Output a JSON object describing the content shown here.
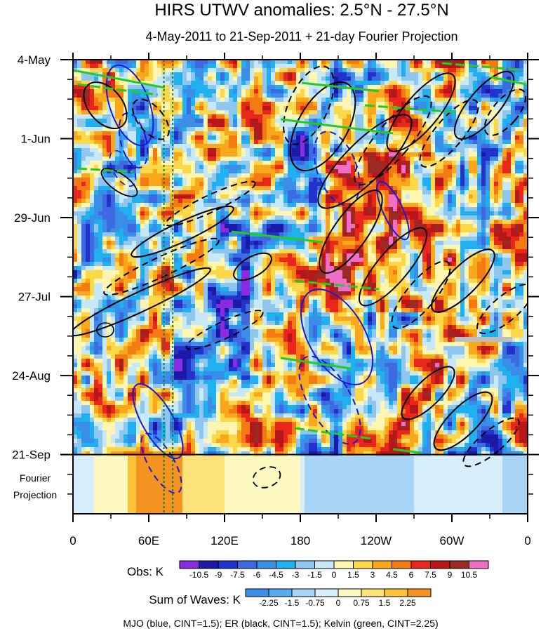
{
  "chart_data": {
    "type": "heatmap",
    "title": "HIRS UTWV anomalies: 2.5°N - 27.5°N",
    "subtitle": "4-May-2011 to 21-Sep-2011 + 21-day Fourier Projection",
    "x_ticks": [
      "0",
      "60E",
      "120E",
      "180",
      "120W",
      "60W",
      "0"
    ],
    "x_tick_values": [
      0,
      60,
      120,
      180,
      240,
      300,
      360
    ],
    "xlim": [
      0,
      360
    ],
    "y_ticks": [
      "4-May",
      "1-Jun",
      "29-Jun",
      "27-Jul",
      "24-Aug",
      "21-Sep"
    ],
    "y_tick_days": [
      0,
      28,
      56,
      84,
      112,
      140
    ],
    "ylim_days": [
      0,
      161
    ],
    "projection_start_day": 140,
    "projection_label": [
      "Fourier",
      "Projection"
    ],
    "obs_colorbar": {
      "label": "Obs: K",
      "levels": [
        "-10.5",
        "-9",
        "-7.5",
        "-6",
        "-4.5",
        "-3",
        "-1.5",
        "0",
        "1.5",
        "3",
        "4.5",
        "6",
        "7.5",
        "9",
        "10.5"
      ],
      "colors": [
        "#8a2be2",
        "#1a1aa6",
        "#2233cc",
        "#3d6ae0",
        "#3a8ee8",
        "#1fb0ef",
        "#8ec6ee",
        "#c7e8f8",
        "#fdf5b0",
        "#fbd84a",
        "#f9a81b",
        "#f47a14",
        "#e8261c",
        "#b8171a",
        "#9c2a24",
        "#f06ec8"
      ]
    },
    "waves_colorbar": {
      "label": "Sum of Waves: K",
      "levels": [
        "-2.25",
        "-1.5",
        "-0.75",
        "0",
        "0.75",
        "1.5",
        "2.25"
      ],
      "colors": [
        "#3d8ee8",
        "#5aaaf0",
        "#a9d4f5",
        "#d9eefb",
        "#fdf7c0",
        "#fde27a",
        "#fbc23a",
        "#f59320"
      ]
    },
    "vertical_lines_lon": [
      72,
      79
    ],
    "contours": {
      "MJO": {
        "color": "#1a1ad6",
        "cint": 1.5
      },
      "ER": {
        "color": "#000000",
        "cint": 1.5
      },
      "Kelvin": {
        "color": "#22cc22",
        "cint": 2.25
      }
    },
    "caption": "MJO (blue, CINT=1.5); ER (black, CINT=1.5); Kelvin (green, CINT=2.25)"
  }
}
